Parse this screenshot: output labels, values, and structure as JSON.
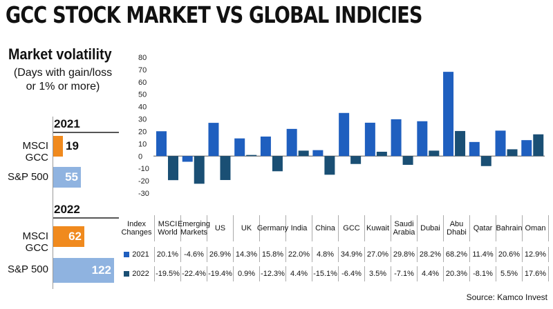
{
  "title": "GCC STOCK MARKET VS GLOBAL INDICIES",
  "volatility": {
    "title": "Market volatility",
    "subtitle_line1": "(Days with gain/loss",
    "subtitle_line2": "or 1% or more)",
    "groups": [
      {
        "year": "2021",
        "rows": [
          {
            "label": "MSCI GCC",
            "value": 19,
            "color": "#f08a1e"
          },
          {
            "label": "S&P 500",
            "value": 55,
            "color": "#8fb3e0"
          }
        ]
      },
      {
        "year": "2022",
        "rows": [
          {
            "label": "MSCI GCC",
            "value": 62,
            "color": "#f08a1e"
          },
          {
            "label": "S&P 500",
            "value": 122,
            "color": "#8fb3e0"
          }
        ]
      }
    ]
  },
  "chart_data": {
    "type": "bar",
    "categories": [
      "MSCI World",
      "Emerging Markets",
      "US",
      "UK",
      "Germany",
      "India",
      "China",
      "GCC",
      "Kuwait",
      "Saudi Arabia",
      "Dubai",
      "Abu Dhabi",
      "Qatar",
      "Bahrain",
      "Oman"
    ],
    "series": [
      {
        "name": "2021",
        "color": "#1f5fbf",
        "values": [
          20.1,
          -4.6,
          26.9,
          14.3,
          15.8,
          22.0,
          4.8,
          34.9,
          27.0,
          29.8,
          28.2,
          68.2,
          11.4,
          20.6,
          12.9
        ]
      },
      {
        "name": "2022",
        "color": "#1a4f74",
        "values": [
          -19.5,
          -22.4,
          -19.4,
          0.9,
          -12.3,
          4.4,
          -15.1,
          -6.4,
          3.5,
          -7.1,
          4.4,
          20.3,
          -8.1,
          5.5,
          17.6
        ]
      }
    ],
    "ylim": [
      -30,
      80
    ],
    "yticks": [
      -30,
      -20,
      -10,
      0,
      10,
      20,
      30,
      40,
      50,
      60,
      70,
      80
    ]
  },
  "table": {
    "header_label": "Index Changes",
    "col_labels": [
      "MSCI World",
      "Emerging Markets",
      "US",
      "UK",
      "Germany",
      "India",
      "China",
      "GCC",
      "Kuwait",
      "Saudi Arabia",
      "Dubai",
      "Abu Dhabi",
      "Qatar",
      "Bahrain",
      "Oman"
    ],
    "rows": [
      {
        "year": "2021",
        "cells": [
          "20.1%",
          "-4.6%",
          "26.9%",
          "14.3%",
          "15.8%",
          "22.0%",
          "4.8%",
          "34.9%",
          "27.0%",
          "29.8%",
          "28.2%",
          "68.2%",
          "11.4%",
          "20.6%",
          "12.9%"
        ]
      },
      {
        "year": "2022",
        "cells": [
          "-19.5%",
          "-22.4%",
          "-19.4%",
          "0.9%",
          "-12.3%",
          "4.4%",
          "-15.1%",
          "-6.4%",
          "3.5%",
          "-7.1%",
          "4.4%",
          "20.3%",
          "-8.1%",
          "5.5%",
          "17.6%"
        ]
      }
    ]
  },
  "source": "Source: Kamco Invest"
}
